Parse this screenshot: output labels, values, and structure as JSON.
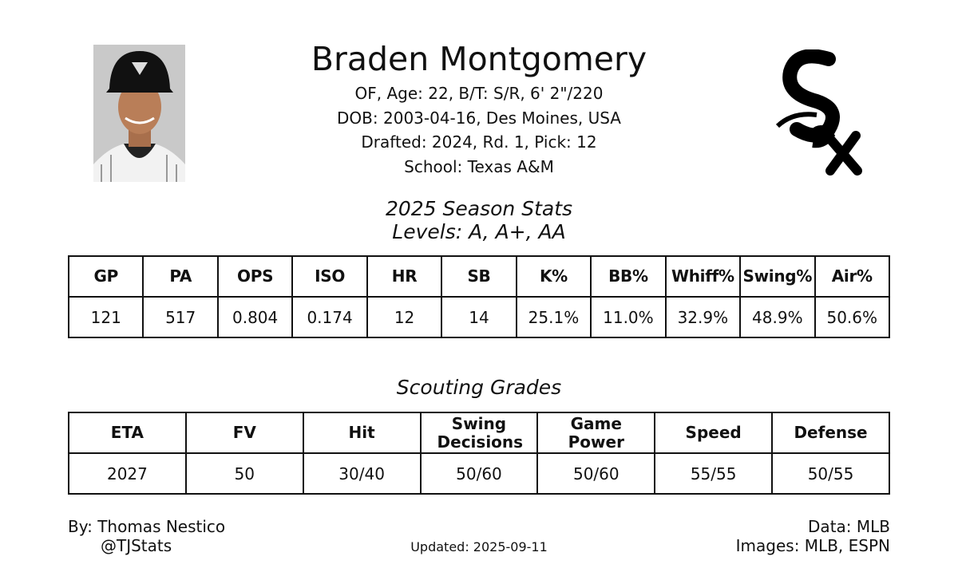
{
  "header": {
    "name": "Braden Montgomery",
    "info": [
      "OF, Age: 22, B/T: S/R, 6' 2\"/220",
      "DOB: 2003-04-16, Des Moines, USA",
      "Drafted: 2024, Rd. 1, Pick: 12",
      "School: Texas A&M"
    ]
  },
  "season_stats": {
    "title": "2025 Season Stats",
    "subtitle": "Levels: A, A+, AA",
    "columns": [
      "GP",
      "PA",
      "OPS",
      "ISO",
      "HR",
      "SB",
      "K%",
      "BB%",
      "Whiff%",
      "Swing%",
      "Air%"
    ],
    "values": [
      "121",
      "517",
      "0.804",
      "0.174",
      "12",
      "14",
      "25.1%",
      "11.0%",
      "32.9%",
      "48.9%",
      "50.6%"
    ]
  },
  "scouting": {
    "title": "Scouting Grades",
    "columns": [
      "ETA",
      "FV",
      "Hit",
      "Swing Decisions",
      "Game Power",
      "Speed",
      "Defense"
    ],
    "values": [
      "2027",
      "50",
      "30/40",
      "50/60",
      "50/60",
      "55/55",
      "50/55"
    ]
  },
  "footer": {
    "author": "By: Thomas Nestico",
    "handle": "@TJStats",
    "updated": "Updated: 2025-09-11",
    "data_source": "Data: MLB",
    "images_source": "Images: MLB, ESPN"
  }
}
